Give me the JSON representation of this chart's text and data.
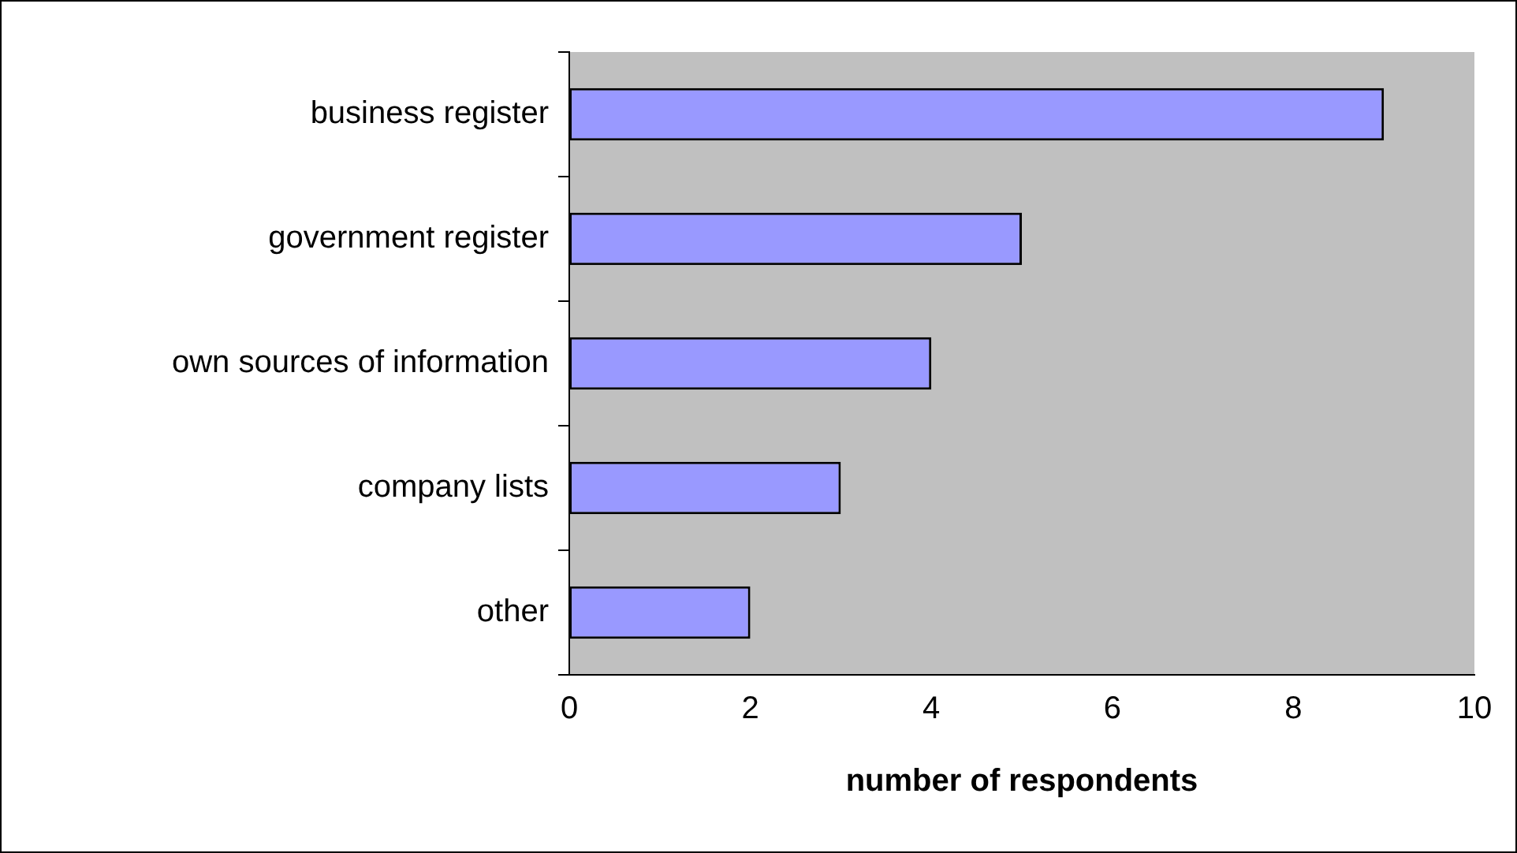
{
  "chart_data": {
    "type": "bar",
    "orientation": "horizontal",
    "xlabel": "number of respondents",
    "categories": [
      "business register",
      "government register",
      "own sources of information",
      "company lists",
      "other"
    ],
    "values": [
      9,
      5,
      4,
      3,
      2
    ],
    "color": "#9999ff",
    "xlim": [
      0,
      10
    ],
    "xticks": [
      0,
      2,
      4,
      6,
      8,
      10
    ],
    "grid": false,
    "legend": false
  }
}
